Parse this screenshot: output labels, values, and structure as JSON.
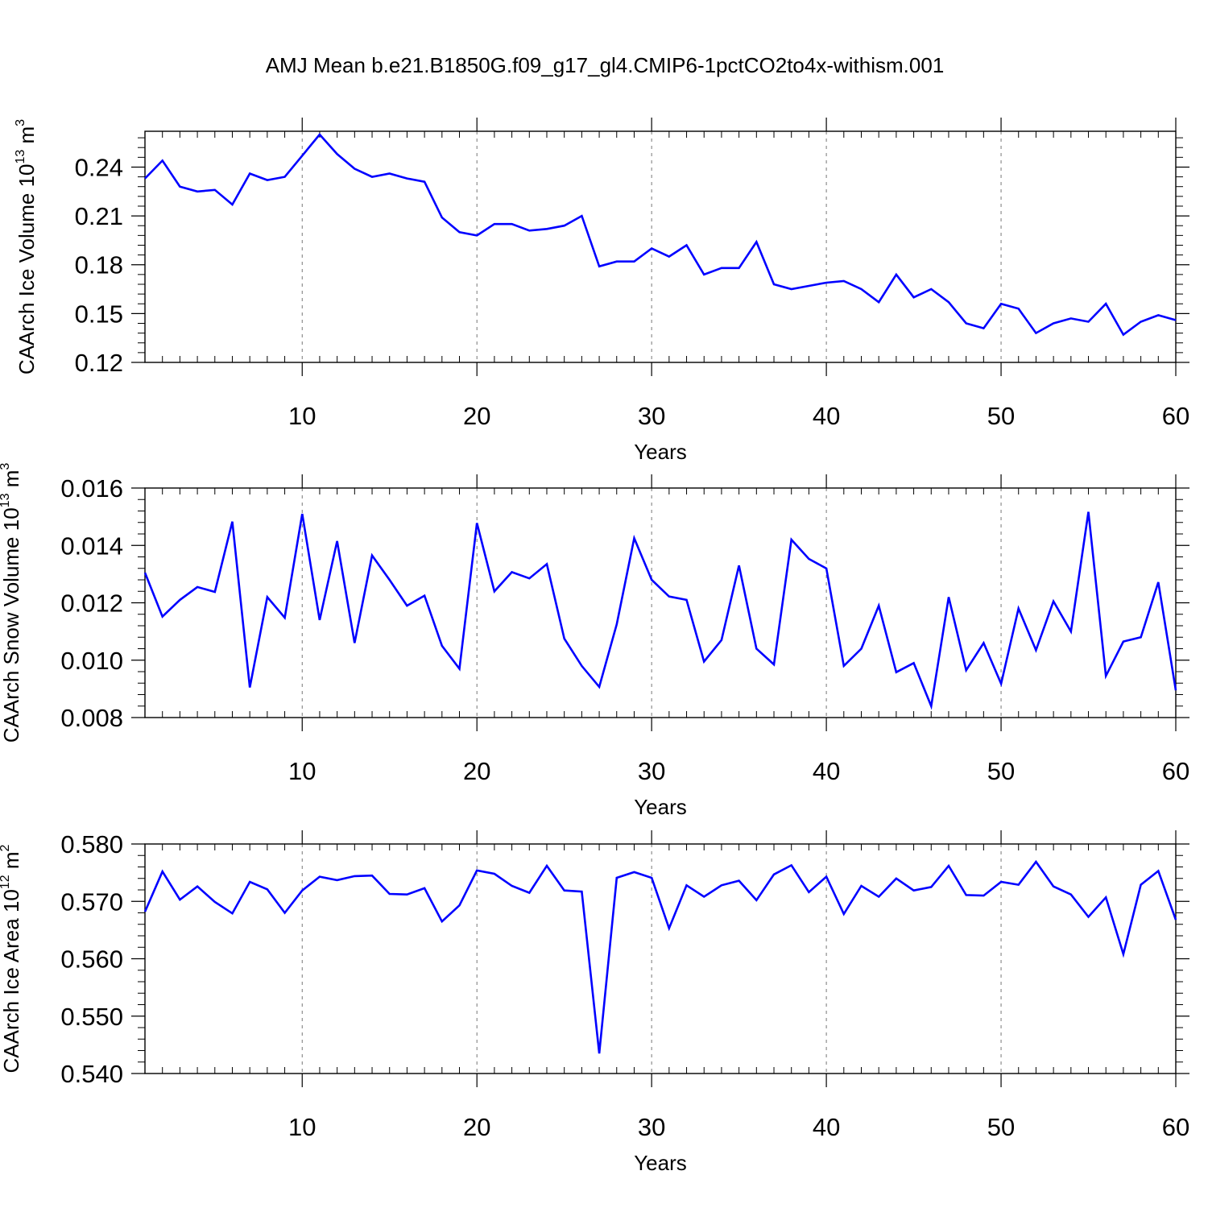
{
  "chart_data": {
    "title": "AMJ Mean b.e21.B1850G.f09_g17_gl4.CMIP6-1pctCO2to4x-withism.001",
    "colors": {
      "line": "#0000ff",
      "axis": "#000000",
      "grid": "#777777"
    },
    "panels": [
      {
        "type": "line",
        "ylabel": {
          "text": "CAArch Ice Volume 10",
          "exp": "13",
          "unit": " m",
          "unit_exp": "3"
        },
        "xlabel": "Years",
        "xlim": [
          1,
          60
        ],
        "ylim": [
          0.12,
          0.262
        ],
        "xticks": [
          10,
          20,
          30,
          40,
          50,
          60
        ],
        "yticks": [
          0.12,
          0.15,
          0.18,
          0.21,
          0.24
        ],
        "ytick_labels": [
          "0.12",
          "0.15",
          "0.18",
          "0.21",
          "0.24"
        ],
        "grid": "vertical dashed at major x ticks",
        "series": [
          {
            "x": [
              1,
              2,
              3,
              4,
              5,
              6,
              7,
              8,
              9,
              10,
              11,
              12,
              13,
              14,
              15,
              16,
              17,
              18,
              19,
              20,
              21,
              22,
              23,
              24,
              25,
              26,
              27,
              28,
              29,
              30,
              31,
              32,
              33,
              34,
              35,
              36,
              37,
              38,
              39,
              40,
              41,
              42,
              43,
              44,
              45,
              46,
              47,
              48,
              49,
              50,
              51,
              52,
              53,
              54,
              55,
              56,
              57,
              58,
              59,
              60
            ],
            "y": [
              0.233,
              0.244,
              0.228,
              0.225,
              0.226,
              0.217,
              0.236,
              0.232,
              0.234,
              0.247,
              0.26,
              0.248,
              0.239,
              0.234,
              0.236,
              0.233,
              0.231,
              0.209,
              0.2,
              0.198,
              0.205,
              0.205,
              0.201,
              0.202,
              0.204,
              0.21,
              0.179,
              0.182,
              0.182,
              0.19,
              0.185,
              0.192,
              0.174,
              0.178,
              0.178,
              0.194,
              0.168,
              0.165,
              0.167,
              0.169,
              0.17,
              0.165,
              0.157,
              0.174,
              0.16,
              0.165,
              0.157,
              0.144,
              0.141,
              0.156,
              0.153,
              0.138,
              0.144,
              0.147,
              0.145,
              0.156,
              0.137,
              0.145,
              0.149,
              0.146
            ]
          }
        ]
      },
      {
        "type": "line",
        "ylabel": {
          "text": "CAArch Snow Volume 10",
          "exp": "13",
          "unit": " m",
          "unit_exp": "3"
        },
        "xlabel": "Years",
        "xlim": [
          1,
          60
        ],
        "ylim": [
          0.008,
          0.016
        ],
        "xticks": [
          10,
          20,
          30,
          40,
          50,
          60
        ],
        "yticks": [
          0.008,
          0.01,
          0.012,
          0.014,
          0.016
        ],
        "ytick_labels": [
          "0.008",
          "0.010",
          "0.012",
          "0.014",
          "0.016"
        ],
        "grid": "vertical dashed at major x ticks",
        "series": [
          {
            "x": [
              1,
              2,
              3,
              4,
              5,
              6,
              7,
              8,
              9,
              10,
              11,
              12,
              13,
              14,
              15,
              16,
              17,
              18,
              19,
              20,
              21,
              22,
              23,
              24,
              25,
              26,
              27,
              28,
              29,
              30,
              31,
              32,
              33,
              34,
              35,
              36,
              37,
              38,
              39,
              40,
              41,
              42,
              43,
              44,
              45,
              46,
              47,
              48,
              49,
              50,
              51,
              52,
              53,
              54,
              55,
              56,
              57,
              58,
              59,
              60
            ],
            "y": [
              0.01305,
              0.01152,
              0.0121,
              0.01255,
              0.01238,
              0.01483,
              0.00905,
              0.0122,
              0.01148,
              0.0151,
              0.0114,
              0.01415,
              0.0106,
              0.01365,
              0.0128,
              0.0119,
              0.01225,
              0.0105,
              0.0097,
              0.01478,
              0.0124,
              0.01307,
              0.01285,
              0.01335,
              0.01075,
              0.0098,
              0.00907,
              0.01125,
              0.01425,
              0.0128,
              0.01222,
              0.0121,
              0.00995,
              0.0107,
              0.0133,
              0.0104,
              0.00985,
              0.0142,
              0.01353,
              0.0132,
              0.0098,
              0.0104,
              0.0119,
              0.00958,
              0.0099,
              0.0084,
              0.0122,
              0.00965,
              0.0106,
              0.00918,
              0.0118,
              0.01035,
              0.01205,
              0.011,
              0.01517,
              0.00945,
              0.01065,
              0.0108,
              0.01272,
              0.00895
            ]
          }
        ]
      },
      {
        "type": "line",
        "ylabel": {
          "text": "CAArch Ice Area 10",
          "exp": "12",
          "unit": " m",
          "unit_exp": "2"
        },
        "xlabel": "Years",
        "xlim": [
          1,
          60
        ],
        "ylim": [
          0.54,
          0.58
        ],
        "xticks": [
          10,
          20,
          30,
          40,
          50,
          60
        ],
        "yticks": [
          0.54,
          0.55,
          0.56,
          0.57,
          0.58
        ],
        "ytick_labels": [
          "0.540",
          "0.550",
          "0.560",
          "0.570",
          "0.580"
        ],
        "grid": "vertical dashed at major x ticks",
        "series": [
          {
            "x": [
              1,
              2,
              3,
              4,
              5,
              6,
              7,
              8,
              9,
              10,
              11,
              12,
              13,
              14,
              15,
              16,
              17,
              18,
              19,
              20,
              21,
              22,
              23,
              24,
              25,
              26,
              27,
              28,
              29,
              30,
              31,
              32,
              33,
              34,
              35,
              36,
              37,
              38,
              39,
              40,
              41,
              42,
              43,
              44,
              45,
              46,
              47,
              48,
              49,
              50,
              51,
              52,
              53,
              54,
              55,
              56,
              57,
              58,
              59,
              60
            ],
            "y": [
              0.5682,
              0.5752,
              0.5703,
              0.5726,
              0.5699,
              0.5679,
              0.5734,
              0.5721,
              0.568,
              0.5719,
              0.5743,
              0.5737,
              0.5744,
              0.5745,
              0.5713,
              0.5712,
              0.5723,
              0.5665,
              0.5693,
              0.5754,
              0.5748,
              0.5727,
              0.5715,
              0.5762,
              0.5719,
              0.5717,
              0.5435,
              0.5741,
              0.5751,
              0.5741,
              0.5653,
              0.5728,
              0.5708,
              0.5728,
              0.5736,
              0.5702,
              0.5747,
              0.5763,
              0.5716,
              0.5743,
              0.5678,
              0.5727,
              0.5708,
              0.574,
              0.5719,
              0.5725,
              0.5762,
              0.5711,
              0.571,
              0.5734,
              0.5729,
              0.5769,
              0.5726,
              0.5712,
              0.5673,
              0.5707,
              0.5608,
              0.5729,
              0.5753,
              0.5668
            ]
          }
        ]
      }
    ]
  }
}
